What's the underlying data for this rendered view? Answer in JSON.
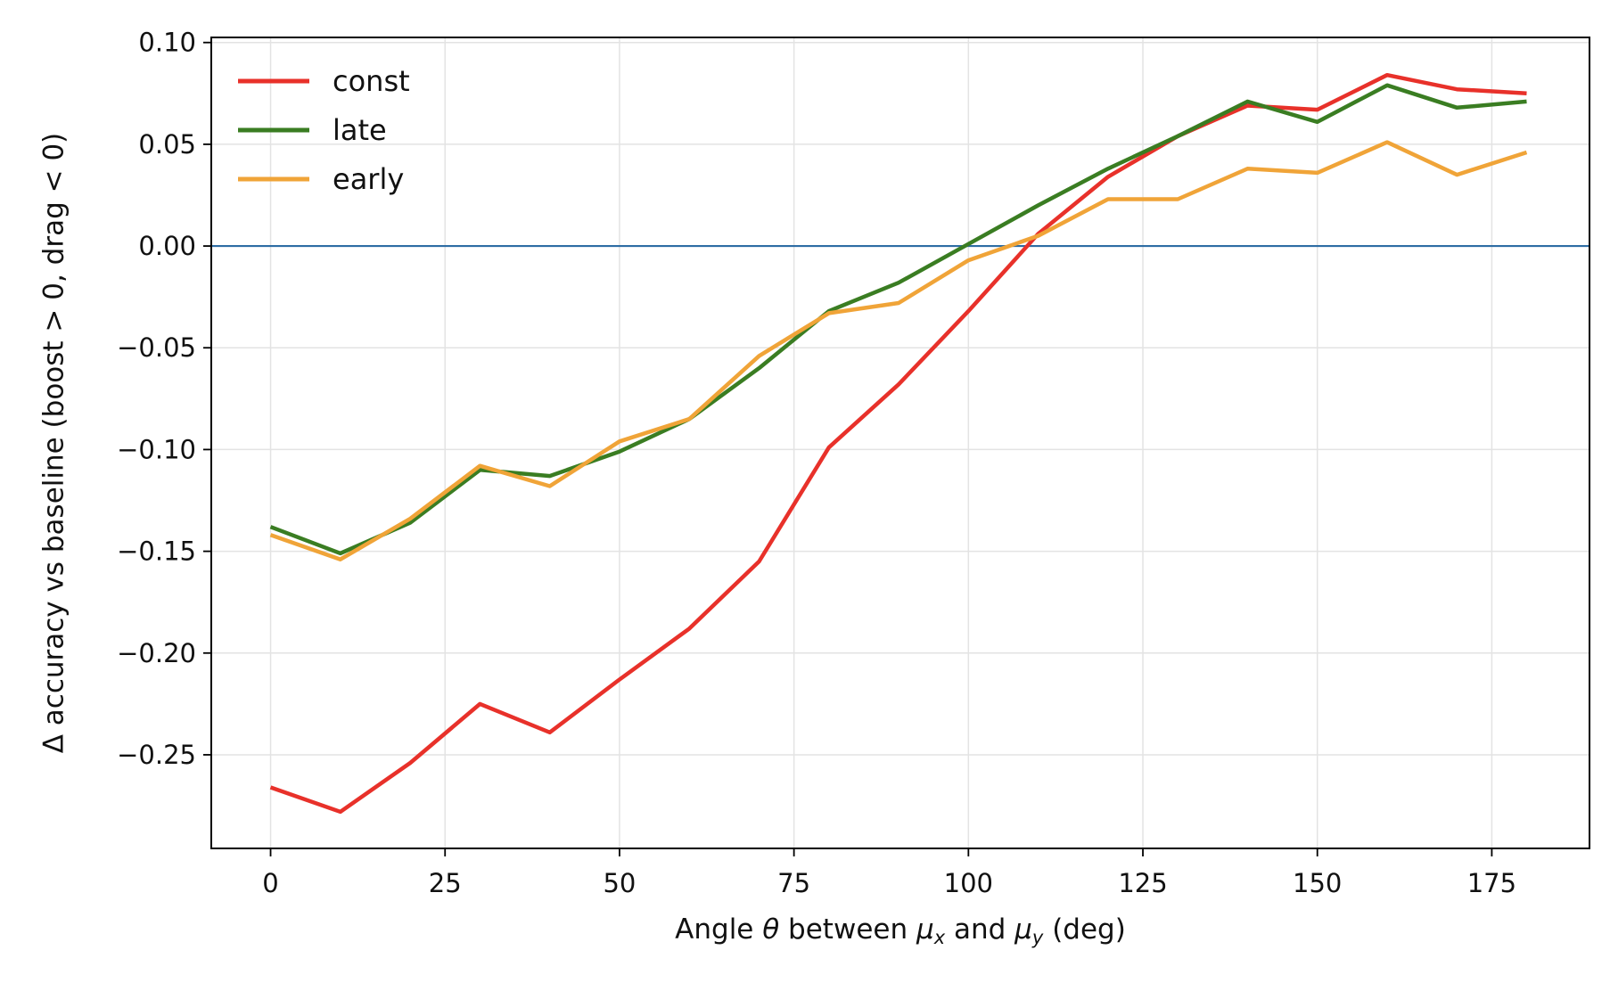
{
  "chart_data": {
    "type": "line",
    "title": "",
    "xlabel": "Angle θ between μx and μy (deg)",
    "xlabel_parts": {
      "before_theta": "Angle ",
      "theta": "θ",
      "between": " between ",
      "mu": "μ",
      "sub_x": "x",
      "and": " and ",
      "sub_y": "y",
      "unit": " (deg)"
    },
    "ylabel": "Δ accuracy vs baseline (boost > 0, drag < 0)",
    "xlim": [
      -8.5,
      189
    ],
    "ylim": [
      -0.296,
      0.1025
    ],
    "xticks": [
      0,
      25,
      50,
      75,
      100,
      125,
      150,
      175
    ],
    "xtick_labels": [
      "0",
      "25",
      "50",
      "75",
      "100",
      "125",
      "150",
      "175"
    ],
    "yticks": [
      0.1,
      0.05,
      0.0,
      -0.05,
      -0.1,
      -0.15,
      -0.2,
      -0.25
    ],
    "ytick_labels": [
      "0.10",
      "0.05",
      "0.00",
      "−0.05",
      "−0.10",
      "−0.15",
      "−0.20",
      "−0.25"
    ],
    "grid": true,
    "legend_position": "top-left",
    "reference_line": {
      "y": 0,
      "color": "#2e6da4"
    },
    "x": [
      0,
      10,
      20,
      30,
      40,
      50,
      60,
      70,
      80,
      90,
      100,
      110,
      120,
      130,
      140,
      150,
      160,
      170,
      180
    ],
    "series": [
      {
        "name": "const",
        "color": "#e8312a",
        "values": [
          -0.266,
          -0.278,
          -0.254,
          -0.225,
          -0.239,
          -0.213,
          -0.188,
          -0.155,
          -0.099,
          -0.068,
          -0.032,
          0.006,
          0.034,
          0.054,
          0.069,
          0.067,
          0.084,
          0.077,
          0.075
        ]
      },
      {
        "name": "late",
        "color": "#3a7d22",
        "values": [
          -0.138,
          -0.151,
          -0.136,
          -0.11,
          -0.113,
          -0.101,
          -0.085,
          -0.06,
          -0.032,
          -0.018,
          0.001,
          0.02,
          0.038,
          0.054,
          0.071,
          0.061,
          0.079,
          0.068,
          0.071
        ]
      },
      {
        "name": "early",
        "color": "#f0a438",
        "values": [
          -0.142,
          -0.154,
          -0.134,
          -0.108,
          -0.118,
          -0.096,
          -0.085,
          -0.054,
          -0.033,
          -0.028,
          -0.007,
          0.005,
          0.023,
          0.023,
          0.038,
          0.036,
          0.051,
          0.035,
          0.046
        ]
      }
    ]
  }
}
